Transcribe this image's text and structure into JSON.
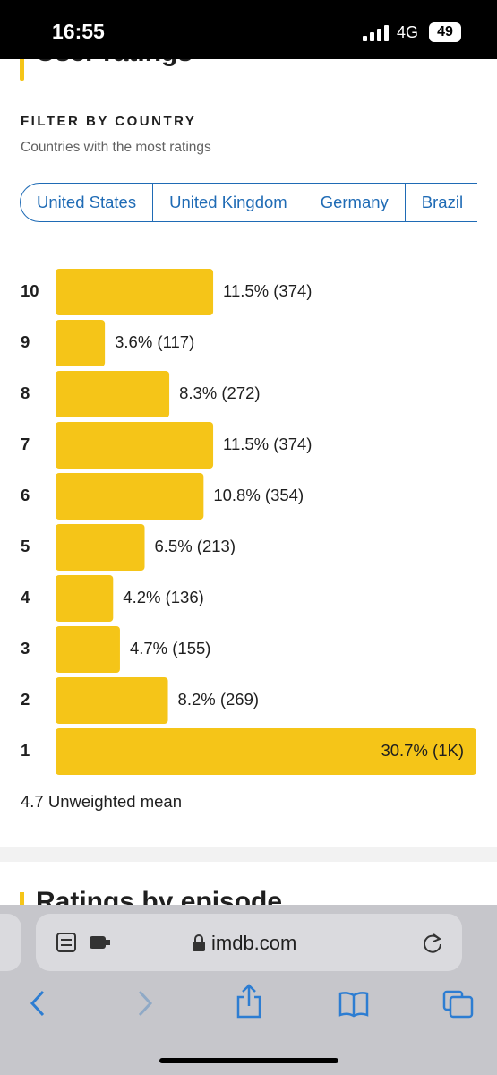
{
  "status": {
    "time": "16:55",
    "network": "4G",
    "battery": "49"
  },
  "header": {
    "title": "User ratings"
  },
  "filter": {
    "heading": "FILTER BY COUNTRY",
    "subheading": "Countries with the most ratings",
    "tabs": [
      "United States",
      "United Kingdom",
      "Germany",
      "Brazil"
    ]
  },
  "ratings": {
    "categories": [
      "10",
      "9",
      "8",
      "7",
      "6",
      "5",
      "4",
      "3",
      "2",
      "1"
    ],
    "values": [
      11.5,
      3.6,
      8.3,
      11.5,
      10.8,
      6.5,
      4.2,
      4.7,
      8.2,
      30.7
    ],
    "value_labels": [
      "11.5% (374)",
      "3.6% (117)",
      "8.3% (272)",
      "11.5% (374)",
      "10.8% (354)",
      "6.5% (213)",
      "4.2% (136)",
      "4.7% (155)",
      "8.2% (269)",
      "30.7% (1K)"
    ],
    "color": "#f5c518"
  },
  "mean": "4.7 Unweighted mean",
  "next_section": "Ratings by episode",
  "browser": {
    "url": "imdb.com"
  }
}
